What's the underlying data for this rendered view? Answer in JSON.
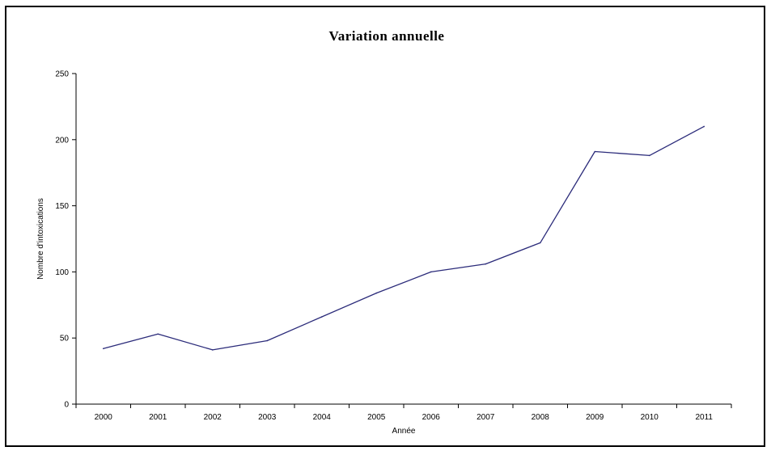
{
  "chart_data": {
    "type": "line",
    "title": "Variation annuelle",
    "xlabel": "Année",
    "ylabel": "Nombre d'intoxications",
    "categories": [
      "2000",
      "2001",
      "2002",
      "2003",
      "2004",
      "2005",
      "2006",
      "2007",
      "2008",
      "2009",
      "2010",
      "2011"
    ],
    "series": [
      {
        "values": [
          42,
          53,
          41,
          48,
          66,
          84,
          100,
          106,
          122,
          191,
          188,
          210
        ]
      }
    ],
    "yticks": [
      "0",
      "50",
      "100",
      "150",
      "200",
      "250"
    ],
    "ylim": [
      0,
      250
    ],
    "grid": false,
    "legend": "none",
    "line_color": "#2b2b7a"
  }
}
